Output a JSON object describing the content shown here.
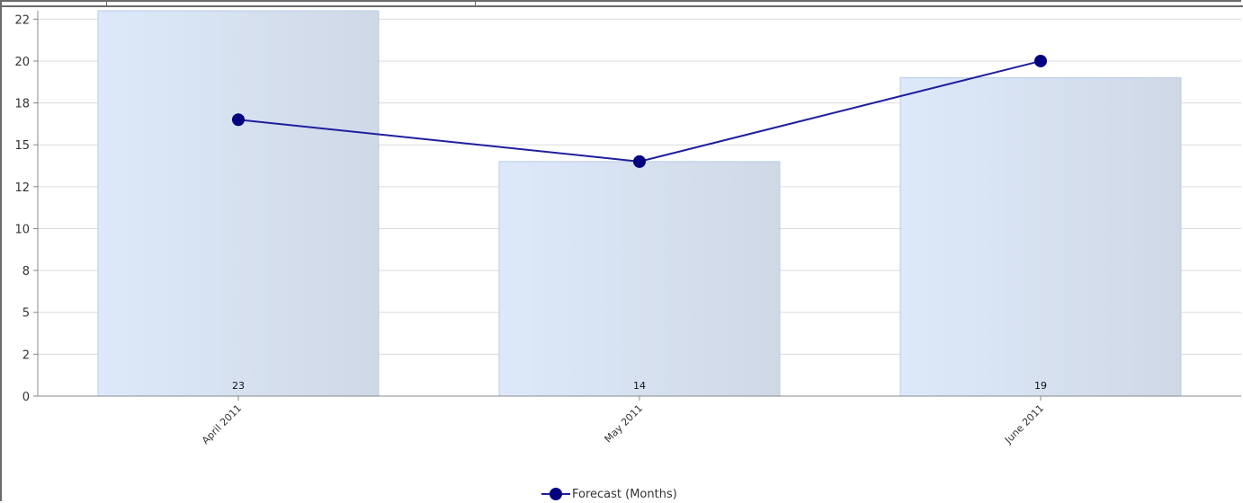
{
  "chart_data": {
    "type": "bar",
    "categories": [
      "April 2011",
      "May 2011",
      "June 2011"
    ],
    "bar_values": [
      23,
      14,
      19
    ],
    "bar_labels": [
      "23",
      "14",
      "19"
    ],
    "line_series": {
      "name": "Forecast (Months)",
      "values": [
        16.5,
        14,
        20
      ]
    },
    "y_ticks": [
      0,
      2.5,
      5,
      7.5,
      10,
      12.5,
      15,
      17.5,
      20,
      22.5
    ],
    "y_tick_labels": [
      "0",
      "2",
      "5",
      "8",
      "10",
      "12",
      "15",
      "18",
      "20",
      "22"
    ],
    "ylim": [
      0,
      23
    ],
    "grid": true,
    "legend_position": "bottom-center",
    "colors": {
      "bar_fill_start": "#dde9fa",
      "bar_fill_end": "#cfd9e6",
      "bar_stroke": "#b7cbe8",
      "line": "#1f1f9e",
      "marker": "#000080",
      "grid": "#dcdcdc",
      "axis": "#888888"
    }
  }
}
